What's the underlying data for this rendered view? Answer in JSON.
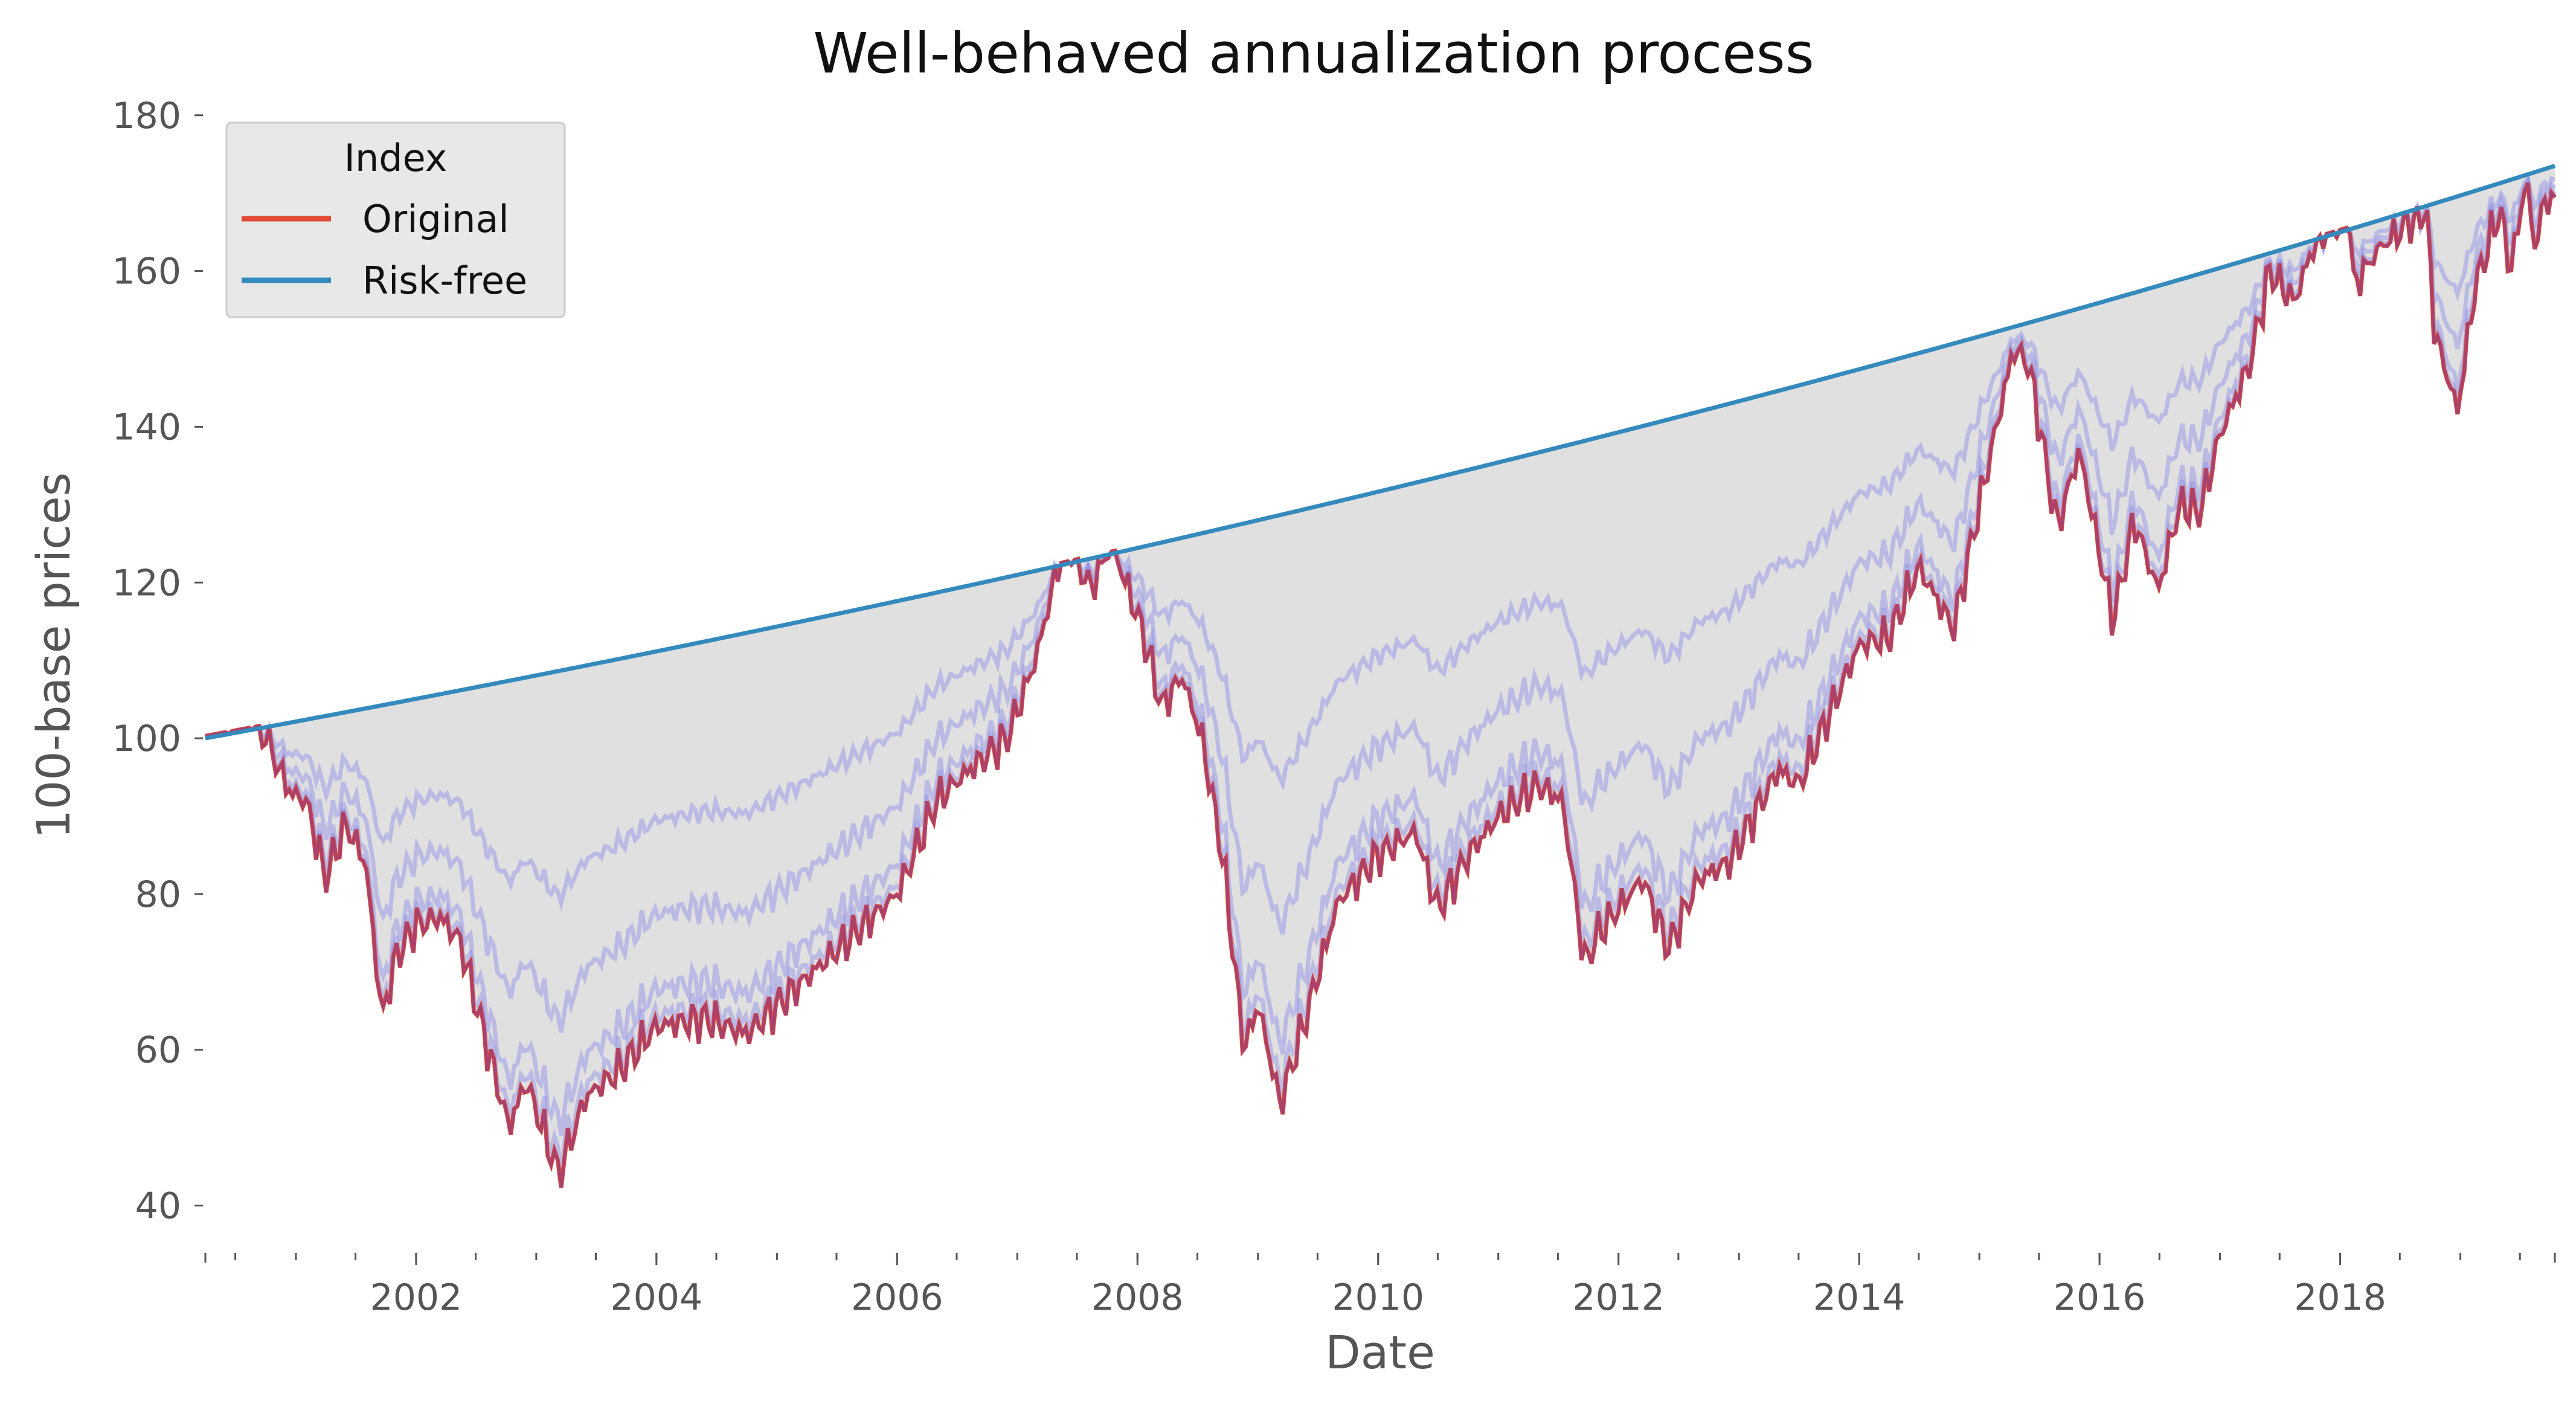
{
  "chart_data": {
    "type": "line",
    "title": "Well-behaved annualization process",
    "xlabel": "Date",
    "ylabel": "100-base prices",
    "xlim": [
      "2000-04-01",
      "2019-10-15"
    ],
    "ylim": [
      35,
      182
    ],
    "x_major_ticks": [
      "2002",
      "2004",
      "2006",
      "2008",
      "2010",
      "2012",
      "2014",
      "2016",
      "2018"
    ],
    "y_ticks": [
      40,
      60,
      80,
      100,
      120,
      140,
      160,
      180
    ],
    "grid": false,
    "legend": {
      "title": "Index",
      "placement": "top-left",
      "entries": [
        {
          "name": "Original",
          "color": "#e24a33"
        },
        {
          "name": "Risk-free",
          "color": "#348abd"
        }
      ]
    },
    "colors": {
      "original": "#e24a33",
      "risk_free": "#348abd",
      "process_paths": "#8b8be8",
      "fill": "#e0e0e0"
    },
    "series": [
      {
        "name": "Original",
        "points": [
          [
            "2000-04-01",
            100
          ],
          [
            "2000-05-01",
            103
          ],
          [
            "2000-06-15",
            101
          ],
          [
            "2000-08-01",
            104
          ],
          [
            "2000-09-15",
            102
          ],
          [
            "2000-11-01",
            97
          ],
          [
            "2000-12-15",
            93
          ],
          [
            "2001-02-01",
            92
          ],
          [
            "2001-04-01",
            82
          ],
          [
            "2001-06-01",
            89
          ],
          [
            "2001-08-01",
            84
          ],
          [
            "2001-09-20",
            64
          ],
          [
            "2001-11-01",
            72
          ],
          [
            "2002-01-01",
            76
          ],
          [
            "2002-03-15",
            77
          ],
          [
            "2002-05-15",
            74
          ],
          [
            "2002-07-20",
            63
          ],
          [
            "2002-10-10",
            50
          ],
          [
            "2002-12-01",
            56
          ],
          [
            "2003-03-10",
            44
          ],
          [
            "2003-06-01",
            54
          ],
          [
            "2003-09-01",
            57
          ],
          [
            "2004-01-01",
            63
          ],
          [
            "2004-06-01",
            64
          ],
          [
            "2004-10-01",
            62
          ],
          [
            "2005-03-01",
            68
          ],
          [
            "2005-08-01",
            74
          ],
          [
            "2006-01-01",
            80
          ],
          [
            "2006-05-01",
            92
          ],
          [
            "2006-07-15",
            95
          ],
          [
            "2006-12-01",
            100
          ],
          [
            "2007-02-25",
            110
          ],
          [
            "2007-06-01",
            127
          ],
          [
            "2007-08-10",
            119
          ],
          [
            "2007-10-15",
            125
          ],
          [
            "2008-01-15",
            114
          ],
          [
            "2008-03-15",
            104
          ],
          [
            "2008-05-15",
            108
          ],
          [
            "2008-07-15",
            100
          ],
          [
            "2008-09-15",
            85
          ],
          [
            "2008-11-20",
            60
          ],
          [
            "2009-01-01",
            66
          ],
          [
            "2009-03-09",
            53
          ],
          [
            "2009-06-01",
            65
          ],
          [
            "2009-09-01",
            79
          ],
          [
            "2010-01-01",
            85
          ],
          [
            "2010-04-25",
            88
          ],
          [
            "2010-07-01",
            78
          ],
          [
            "2010-10-01",
            85
          ],
          [
            "2011-01-01",
            90
          ],
          [
            "2011-05-01",
            94
          ],
          [
            "2011-07-15",
            92
          ],
          [
            "2011-09-20",
            71
          ],
          [
            "2011-11-01",
            75
          ],
          [
            "2012-03-15",
            82
          ],
          [
            "2012-06-01",
            73
          ],
          [
            "2012-09-01",
            82
          ],
          [
            "2012-12-01",
            84
          ],
          [
            "2013-05-01",
            96
          ],
          [
            "2013-07-01",
            94
          ],
          [
            "2014-01-01",
            112
          ],
          [
            "2014-04-01",
            113
          ],
          [
            "2014-07-01",
            122
          ],
          [
            "2014-10-15",
            114
          ],
          [
            "2015-01-01",
            130
          ],
          [
            "2015-04-15",
            150
          ],
          [
            "2015-06-01",
            148
          ],
          [
            "2015-08-25",
            127
          ],
          [
            "2015-11-01",
            137
          ],
          [
            "2016-02-11",
            115
          ],
          [
            "2016-04-15",
            128
          ],
          [
            "2016-06-27",
            119
          ],
          [
            "2016-09-01",
            130
          ],
          [
            "2016-11-01",
            129
          ],
          [
            "2017-01-01",
            139
          ],
          [
            "2017-04-01",
            148
          ],
          [
            "2017-06-01",
            160
          ],
          [
            "2017-08-15",
            156
          ],
          [
            "2017-10-01",
            162
          ],
          [
            "2018-01-26",
            170
          ],
          [
            "2018-02-09",
            158
          ],
          [
            "2018-05-01",
            163
          ],
          [
            "2018-09-20",
            168
          ],
          [
            "2018-10-15",
            152
          ],
          [
            "2018-12-24",
            142
          ],
          [
            "2019-02-15",
            158
          ],
          [
            "2019-05-01",
            168
          ],
          [
            "2019-06-03",
            160
          ],
          [
            "2019-07-20",
            172
          ],
          [
            "2019-08-15",
            163
          ],
          [
            "2019-09-20",
            170
          ],
          [
            "2019-10-15",
            168
          ]
        ]
      },
      {
        "name": "Risk-free",
        "start": [
          "2000-04-01",
          100
        ],
        "end": [
          "2019-10-15",
          173.5
        ]
      }
    ]
  }
}
